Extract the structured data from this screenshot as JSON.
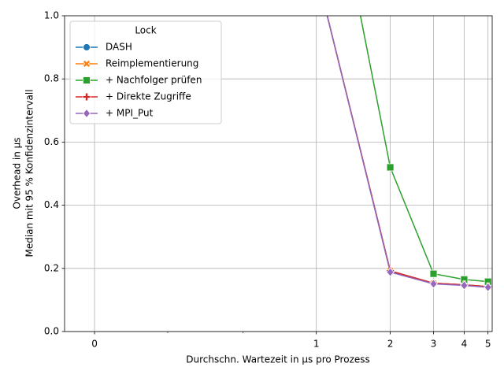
{
  "chart_data": {
    "type": "line",
    "xlabel": "Durchschn. Wartezeit in µs pro Prozess",
    "ylabel": [
      "Overhead in µs",
      "Median mit 95 % Konfidenzintervall"
    ],
    "legend_title": "Lock",
    "legend": "upper left",
    "grid": true,
    "xscale": "symlog",
    "xbase": 2,
    "linthresh": 1,
    "linscale": 1.5,
    "xlim": [
      -0.135,
      5.2
    ],
    "xticks": [
      0,
      1,
      2,
      3,
      4,
      5
    ],
    "xminorticks": [
      0.33,
      0.67
    ],
    "ylim": [
      0,
      1
    ],
    "yticks": [
      {
        "value": 0,
        "label": "0.0"
      },
      {
        "value": 0.2,
        "label": "0.2"
      },
      {
        "value": 0.4,
        "label": "0.4"
      },
      {
        "value": 0.6,
        "label": "0.6"
      },
      {
        "value": 0.8,
        "label": "0.8"
      },
      {
        "value": 1,
        "label": "1.0"
      }
    ],
    "x": [
      1,
      2,
      3,
      4,
      5
    ],
    "series": [
      {
        "name": "DASH",
        "color": "#1f77b4",
        "marker": "circle",
        "values": [
          1.14,
          0.192,
          0.153,
          0.148,
          0.142
        ]
      },
      {
        "name": "Reimplementierung",
        "color": "#ff7f0e",
        "marker": "x",
        "values": [
          1.14,
          0.192,
          0.153,
          0.148,
          0.142
        ]
      },
      {
        "name": "+ Nachfolger prüfen",
        "color": "#2ca02c",
        "marker": "square",
        "values": [
          1.71,
          0.52,
          0.183,
          0.165,
          0.158
        ]
      },
      {
        "name": "+ Direkte Zugriffe",
        "color": "#d62728",
        "marker": "plus",
        "values": [
          1.14,
          0.192,
          0.153,
          0.148,
          0.142
        ]
      },
      {
        "name": "+ MPI_Put",
        "color": "#9467bd",
        "marker": "diamond",
        "values": [
          1.14,
          0.188,
          0.151,
          0.146,
          0.14
        ]
      }
    ]
  }
}
